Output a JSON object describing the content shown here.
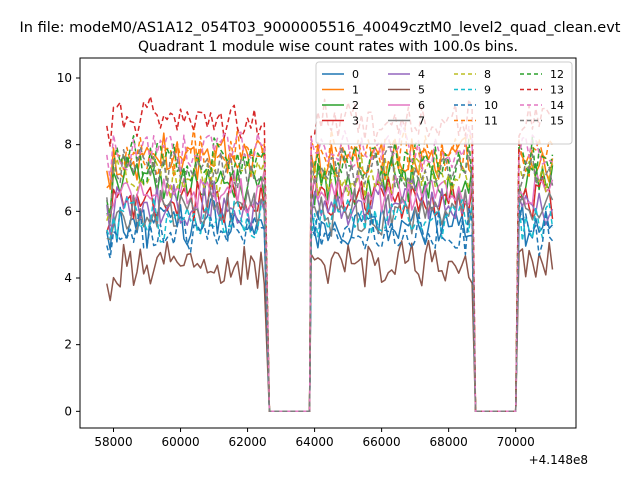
{
  "figure": {
    "suptitle": "In file: modeM0/AS1A12_054T03_9000005516_40049cztM0_level2_quad_clean.evt"
  },
  "chart_data": {
    "type": "line",
    "title": "Quadrant 1 module wise count rates with 100.0s bins.",
    "xlabel": "",
    "ylabel": "",
    "x_offset_label": "+4.148e8",
    "xlim": [
      57000,
      71800
    ],
    "ylim": [
      -0.5,
      10.6
    ],
    "xticks": [
      58000,
      60000,
      62000,
      64000,
      66000,
      68000,
      70000
    ],
    "xtick_labels": [
      "58000",
      "60000",
      "62000",
      "64000",
      "66000",
      "68000",
      "70000"
    ],
    "yticks": [
      0,
      2,
      4,
      6,
      8,
      10
    ],
    "ytick_labels": [
      "0",
      "2",
      "4",
      "6",
      "8",
      "10"
    ],
    "grid": false,
    "legend_position": "top-right",
    "segments": [
      {
        "start": 57800,
        "end": 62500
      },
      {
        "start": 63900,
        "end": 68700
      },
      {
        "start": 70100,
        "end": 71100
      }
    ],
    "gaps": [
      {
        "drop_from": 62500,
        "zero_start": 62650,
        "zero_end": 63850,
        "rise_to": 63900
      },
      {
        "drop_from": 68700,
        "zero_start": 68800,
        "zero_end": 70000,
        "rise_to": 70100
      }
    ],
    "bin_size_s": 100,
    "series": [
      {
        "name": "0",
        "color": "#1f77b4",
        "dashed": false,
        "level": 5.6
      },
      {
        "name": "1",
        "color": "#ff7f0e",
        "dashed": false,
        "level": 7.6
      },
      {
        "name": "2",
        "color": "#2ca02c",
        "dashed": false,
        "level": 6.9
      },
      {
        "name": "3",
        "color": "#d62728",
        "dashed": false,
        "level": 6.4
      },
      {
        "name": "4",
        "color": "#9467bd",
        "dashed": false,
        "level": 6.2
      },
      {
        "name": "5",
        "color": "#8c564b",
        "dashed": false,
        "level": 4.4
      },
      {
        "name": "6",
        "color": "#e377c2",
        "dashed": false,
        "level": 6.6
      },
      {
        "name": "7",
        "color": "#7f7f7f",
        "dashed": false,
        "level": 6.0
      },
      {
        "name": "8",
        "color": "#bcbd22",
        "dashed": true,
        "level": 7.1
      },
      {
        "name": "9",
        "color": "#17becf",
        "dashed": true,
        "level": 5.8
      },
      {
        "name": "10",
        "color": "#1f77b4",
        "dashed": true,
        "level": 5.4
      },
      {
        "name": "11",
        "color": "#ff7f0e",
        "dashed": true,
        "level": 7.8
      },
      {
        "name": "12",
        "color": "#2ca02c",
        "dashed": true,
        "level": 7.5
      },
      {
        "name": "13",
        "color": "#d62728",
        "dashed": true,
        "level": 8.7
      },
      {
        "name": "14",
        "color": "#e377c2",
        "dashed": true,
        "level": 7.9
      },
      {
        "name": "15",
        "color": "#7f7f7f",
        "dashed": true,
        "level": 7.2
      }
    ]
  }
}
